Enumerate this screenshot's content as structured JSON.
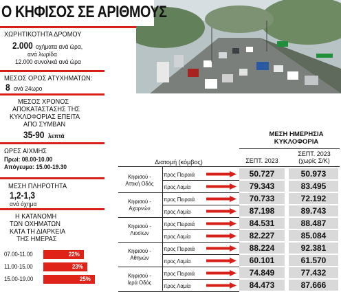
{
  "title": "Ο ΚΗΦΙΣΟΣ ΣΕ ΑΡΙΘΜΟΥΣ",
  "capacity": {
    "label": "ΧΩΡΗΤΙΚΟΤΗΤΑ ΔΡΟΜΟΥ",
    "value": "2.000",
    "value_suffix": "οχήματα ανά ώρα,",
    "line2": "ανά λωρίδα",
    "line3": "12.000 συνολικά ανά ώρα"
  },
  "accidents": {
    "label": "ΜΕΣΟΣ ΟΡΟΣ ΑΤΥΧΗΜΑΤΩΝ:",
    "value": "8",
    "value_suffix": "ανά 24ωρο"
  },
  "restore": {
    "line1": "ΜΕΣΟΣ ΧΡΟΝΟΣ",
    "line2": "ΑΠΟΚΑΤΑΣΤΑΣΗΣ ΤΗΣ",
    "line3": "ΚΥΚΛΟΦΟΡΙΑΣ ΕΠΕΙΤΑ",
    "line4": "ΑΠΟ ΣΥΜΒΑΝ",
    "value": "35-90",
    "value_suffix": "λεπτά"
  },
  "peak": {
    "label": "ΩΡΕΣ ΑΙΧΜΗΣ",
    "morning": "Πρωί: 08.00-10.00",
    "afternoon": "Απόγευμα: 15.00-19.30"
  },
  "occupancy": {
    "label": "ΜΕΣΗ ΠΛΗΡΟΤΗΤΑ",
    "value": "1,2-1,3",
    "value_suffix": "ανά όχημα"
  },
  "distribution": {
    "line1": "Η ΚΑΤΑΝΟΜΗ",
    "line2": "ΤΩΝ ΟΧΗΜΑΤΩΝ",
    "line3": "ΚΑΤΑ ΤΗ ΔΙΑΡΚΕΙΑ",
    "line4": "ΤΗΣ ΗΜΕΡΑΣ",
    "bars": [
      {
        "label": "07.00-11.00",
        "value": "22%",
        "pct": 22
      },
      {
        "label": "11.00-15.00",
        "value": "23%",
        "pct": 23
      },
      {
        "label": "15.00-19.00",
        "value": "25%",
        "pct": 25
      }
    ]
  },
  "table": {
    "title_line1": "ΜΕΣΗ ΗΜΕΡΗΣΙΑ",
    "title_line2": "ΚΥΚΛΟΦΟΡΙΑ",
    "col_section": "Διατομή (κόμβος)",
    "col1": "ΣΕΠΤ. 2023",
    "col2_line1": "ΣΕΠΤ. 2023",
    "col2_line2": "(χωρίς Σ/Κ)",
    "groups": [
      {
        "road1": "Κηφισού -",
        "road2": "Αττική Οδός",
        "rows": [
          {
            "dir": "προς Πειραιά",
            "v1": "50.727",
            "v2": "50.973"
          },
          {
            "dir": "προς Λαμία",
            "v1": "79.343",
            "v2": "83.495"
          }
        ]
      },
      {
        "road1": "Κηφισού -",
        "road2": "Αχαρνών",
        "rows": [
          {
            "dir": "προς Πειραιά",
            "v1": "70.733",
            "v2": "72.192"
          },
          {
            "dir": "προς Λαμία",
            "v1": "87.198",
            "v2": "89.743"
          }
        ]
      },
      {
        "road1": "Κηφισού -",
        "road2": "Λιοσίων",
        "rows": [
          {
            "dir": "προς Πειραιά",
            "v1": "84.531",
            "v2": "88.487"
          },
          {
            "dir": "προς Λαμία",
            "v1": "82.227",
            "v2": "85.084"
          }
        ]
      },
      {
        "road1": "Κηφισού -",
        "road2": "Αθηνών",
        "rows": [
          {
            "dir": "προς Πειραιά",
            "v1": "88.224",
            "v2": "92.381"
          },
          {
            "dir": "προς Λαμία",
            "v1": "60.101",
            "v2": "61.570"
          }
        ]
      },
      {
        "road1": "Κηφισού -",
        "road2": "Ιερά Οδός",
        "rows": [
          {
            "dir": "προς Πειραιά",
            "v1": "74.849",
            "v2": "77.432"
          },
          {
            "dir": "προς Λαμία",
            "v1": "84.473",
            "v2": "87.666"
          }
        ]
      }
    ]
  },
  "colors": {
    "accent": "#d8201a",
    "cell": "#d9d9d9"
  },
  "photo_icon": "highway-traffic-photo"
}
